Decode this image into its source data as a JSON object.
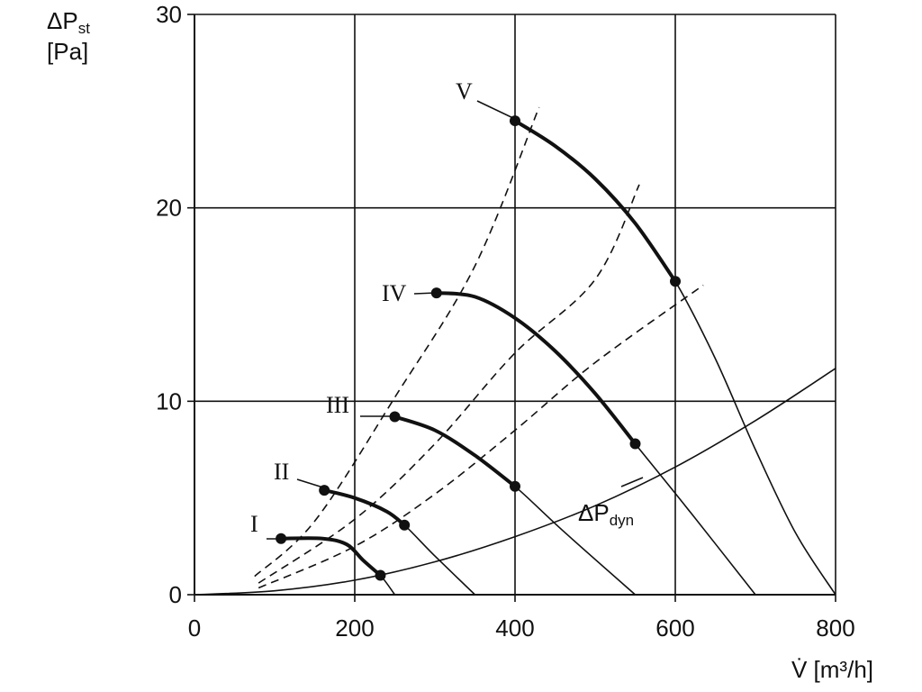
{
  "chart_data": {
    "type": "line",
    "xlabel": "V̇ [m³/h]",
    "ylabel_symbol": "ΔP",
    "ylabel_subscript": "st",
    "ylabel_unit": "[Pa]",
    "xlim": [
      0,
      800
    ],
    "ylim": [
      0,
      30
    ],
    "x_ticks": [
      "0",
      "200",
      "400",
      "600",
      "800"
    ],
    "y_ticks": [
      "0",
      "10",
      "20",
      "30"
    ],
    "grid": true,
    "series": [
      {
        "name": "I",
        "points": [
          [
            108,
            2.9
          ],
          [
            160,
            2.9
          ],
          [
            190,
            2.6
          ],
          [
            210,
            1.8
          ],
          [
            232,
            1.0
          ],
          [
            250,
            0
          ]
        ],
        "bold_range": [
          108,
          232
        ],
        "markers": [
          [
            108,
            2.9
          ],
          [
            232,
            1.0
          ]
        ]
      },
      {
        "name": "II",
        "points": [
          [
            162,
            5.4
          ],
          [
            200,
            5.0
          ],
          [
            240,
            4.3
          ],
          [
            262,
            3.6
          ],
          [
            300,
            2.0
          ],
          [
            350,
            0
          ]
        ],
        "bold_range": [
          162,
          262
        ],
        "markers": [
          [
            162,
            5.4
          ],
          [
            262,
            3.6
          ]
        ]
      },
      {
        "name": "III",
        "points": [
          [
            250,
            9.2
          ],
          [
            300,
            8.5
          ],
          [
            350,
            7.2
          ],
          [
            400,
            5.6
          ],
          [
            460,
            3.3
          ],
          [
            550,
            0
          ]
        ],
        "bold_range": [
          250,
          400
        ],
        "markers": [
          [
            250,
            9.2
          ],
          [
            400,
            5.6
          ]
        ]
      },
      {
        "name": "IV",
        "points": [
          [
            302,
            15.6
          ],
          [
            350,
            15.4
          ],
          [
            400,
            14.3
          ],
          [
            450,
            12.6
          ],
          [
            500,
            10.4
          ],
          [
            550,
            7.8
          ],
          [
            620,
            4.2
          ],
          [
            700,
            0
          ]
        ],
        "bold_range": [
          302,
          550
        ],
        "markers": [
          [
            302,
            15.6
          ],
          [
            550,
            7.8
          ]
        ]
      },
      {
        "name": "V",
        "points": [
          [
            400,
            24.5
          ],
          [
            450,
            23.2
          ],
          [
            500,
            21.5
          ],
          [
            550,
            19.2
          ],
          [
            600,
            16.2
          ],
          [
            650,
            12.2
          ],
          [
            700,
            7.5
          ],
          [
            750,
            3.2
          ],
          [
            800,
            0
          ]
        ],
        "bold_range": [
          400,
          600
        ],
        "markers": [
          [
            400,
            24.5
          ],
          [
            600,
            16.2
          ]
        ]
      },
      {
        "name": "ΔPdyn",
        "label_symbol": "ΔP",
        "label_subscript": "dyn",
        "points": [
          [
            0,
            0
          ],
          [
            100,
            0.2
          ],
          [
            200,
            0.75
          ],
          [
            300,
            1.7
          ],
          [
            400,
            3.0
          ],
          [
            500,
            4.6
          ],
          [
            600,
            6.6
          ],
          [
            700,
            9.0
          ],
          [
            800,
            11.7
          ]
        ]
      }
    ],
    "system_curves_dashed": [
      {
        "points": [
          [
            75,
            0.95
          ],
          [
            150,
            3.8
          ],
          [
            250,
            10.2
          ],
          [
            350,
            17.0
          ],
          [
            430,
            25.2
          ]
        ]
      },
      {
        "points": [
          [
            80,
            0.6
          ],
          [
            200,
            3.9
          ],
          [
            300,
            7.8
          ],
          [
            400,
            12.5
          ],
          [
            500,
            16.3
          ],
          [
            555,
            21.2
          ]
        ]
      },
      {
        "points": [
          [
            80,
            0.35
          ],
          [
            200,
            2.5
          ],
          [
            300,
            5.2
          ],
          [
            400,
            8.5
          ],
          [
            500,
            12.0
          ],
          [
            635,
            16.0
          ]
        ]
      }
    ]
  }
}
